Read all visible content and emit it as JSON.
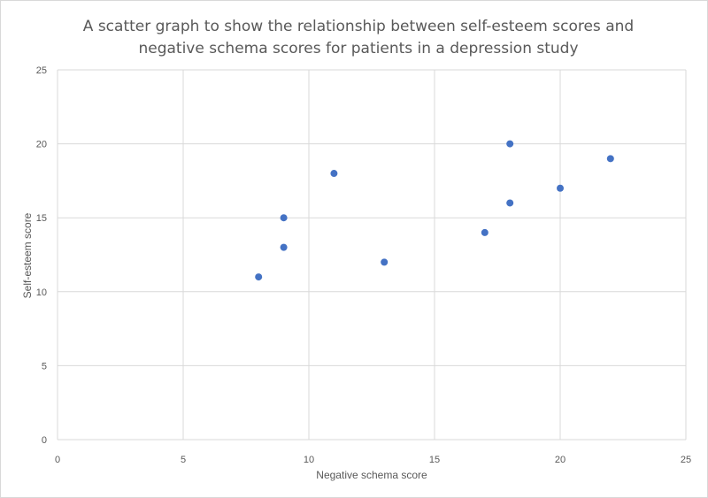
{
  "chart_data": {
    "type": "scatter",
    "title": "A scatter graph to show the relationship between self-esteem scores and\nnegative schema scores for patients in a depression study",
    "xlabel": "Negative schema score",
    "ylabel": "Self-esteem score",
    "xlim": [
      0,
      25
    ],
    "ylim": [
      0,
      25
    ],
    "x_ticks": [
      "0",
      "5",
      "10",
      "15",
      "20",
      "25"
    ],
    "y_ticks": [
      "0",
      "5",
      "10",
      "15",
      "20",
      "25"
    ],
    "grid": true,
    "marker_color": "#4472C4",
    "points": [
      {
        "x": 8,
        "y": 11
      },
      {
        "x": 9,
        "y": 15
      },
      {
        "x": 9,
        "y": 13
      },
      {
        "x": 11,
        "y": 18
      },
      {
        "x": 13,
        "y": 12
      },
      {
        "x": 17,
        "y": 14
      },
      {
        "x": 18,
        "y": 20
      },
      {
        "x": 18,
        "y": 16
      },
      {
        "x": 20,
        "y": 17
      },
      {
        "x": 22,
        "y": 19
      }
    ]
  }
}
